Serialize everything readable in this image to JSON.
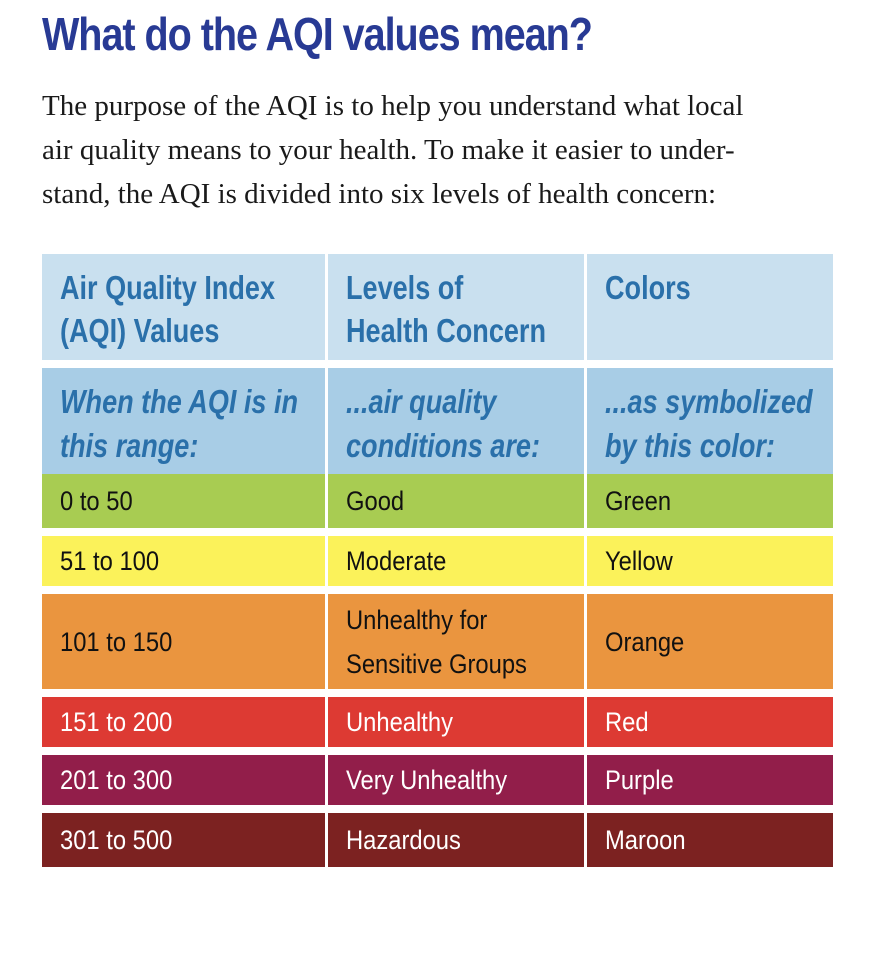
{
  "title": "What do the AQI values mean?",
  "intro": [
    "The purpose of the AQI is to help you understand what local",
    "air quality means to your health. To make it easier to under-",
    "stand, the AQI is divided into six levels of health concern:"
  ],
  "table": {
    "header": [
      [
        "Air Quality Index",
        "(AQI) Values"
      ],
      [
        "Levels of",
        "Health Concern"
      ],
      [
        "Colors"
      ]
    ],
    "subheader": [
      [
        "When the AQI is in",
        "this range:"
      ],
      [
        "...air quality",
        "conditions are:"
      ],
      [
        "...as symbolized",
        "by this color:"
      ]
    ],
    "header_bg": "#c9e0ef",
    "subheader_bg": "#a8cde6",
    "header_text_color": "#2a70aa",
    "rows": [
      {
        "range": "0 to 50",
        "level": [
          "Good"
        ],
        "color_name": "Green",
        "bg": "#a8cc52",
        "fg": "#111111"
      },
      {
        "range": "51 to 100",
        "level": [
          "Moderate"
        ],
        "color_name": "Yellow",
        "bg": "#fbf25a",
        "fg": "#111111"
      },
      {
        "range": "101 to 150",
        "level": [
          "Unhealthy for",
          "Sensitive Groups"
        ],
        "color_name": "Orange",
        "bg": "#ea953f",
        "fg": "#111111"
      },
      {
        "range": "151 to 200",
        "level": [
          "Unhealthy"
        ],
        "color_name": "Red",
        "bg": "#dd3a33",
        "fg": "#ffffff"
      },
      {
        "range": "201 to 300",
        "level": [
          "Very Unhealthy"
        ],
        "color_name": "Purple",
        "bg": "#921e4a",
        "fg": "#ffffff"
      },
      {
        "range": "301 to 500",
        "level": [
          "Hazardous"
        ],
        "color_name": "Maroon",
        "bg": "#7c2221",
        "fg": "#ffffff"
      }
    ]
  }
}
